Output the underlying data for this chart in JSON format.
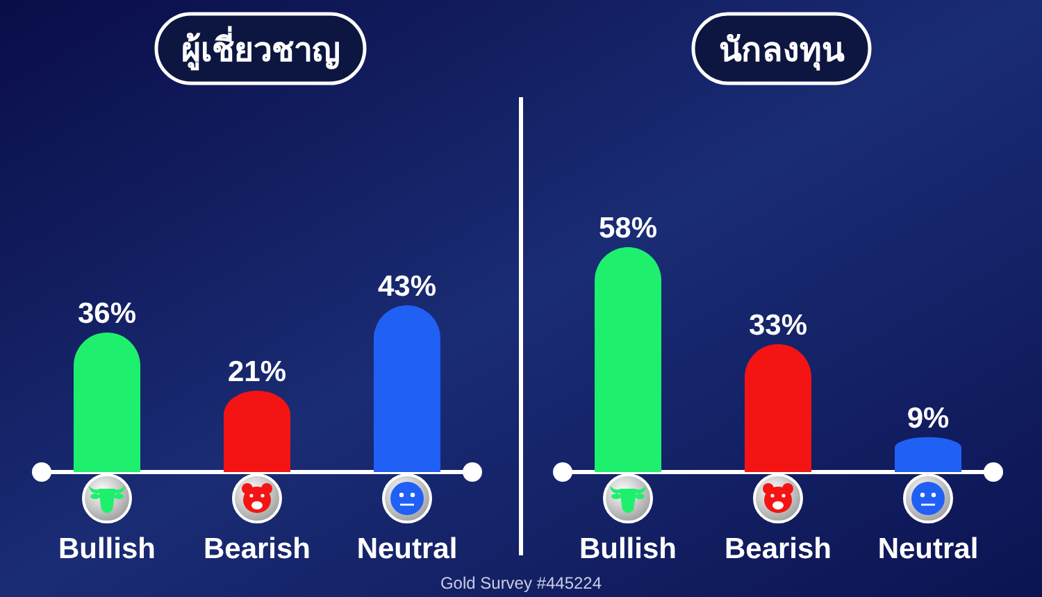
{
  "chart_data": [
    {
      "type": "bar",
      "title": "ผู้เชี่ยวชาญ",
      "categories": [
        "Bullish",
        "Bearish",
        "Neutral"
      ],
      "values": [
        36,
        21,
        43
      ],
      "colors": [
        "#1ef06e",
        "#f51414",
        "#2060f5"
      ],
      "value_labels": [
        "36%",
        "21%",
        "43%"
      ]
    },
    {
      "type": "bar",
      "title": "นักลงทุน",
      "categories": [
        "Bullish",
        "Bearish",
        "Neutral"
      ],
      "values": [
        58,
        33,
        9
      ],
      "colors": [
        "#1ef06e",
        "#f51414",
        "#2060f5"
      ],
      "value_labels": [
        "58%",
        "33%",
        "9%"
      ],
      "annotations": [
        "Gold Survey #445224"
      ]
    }
  ]
}
